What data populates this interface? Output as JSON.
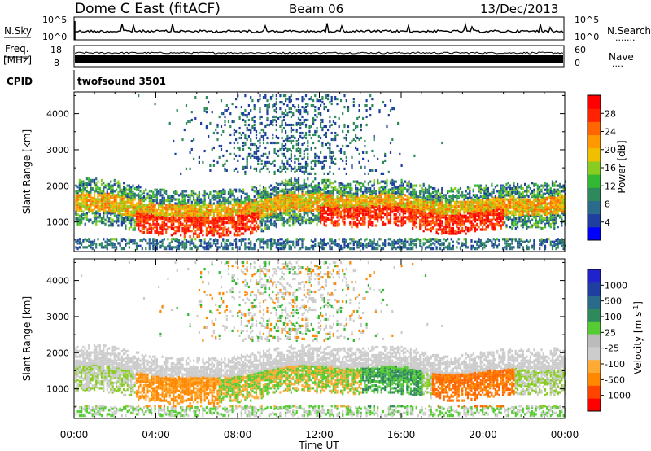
{
  "header": {
    "title": "Dome C East (fitACF)",
    "beam": "Beam 06",
    "date": "13/Dec/2013"
  },
  "strip_nsky": {
    "label": "N.Sky",
    "right_label": "N.Search",
    "right_dots": ".......",
    "ticks_left": [
      "10^5",
      "10^0"
    ],
    "ticks_right": [
      "10^5",
      "10^0"
    ]
  },
  "strip_freq": {
    "label_top": "Freq.",
    "label_bottom": "[MHz]",
    "right_label": "Nave",
    "right_dots": "....",
    "ticks_left": [
      "18",
      "8"
    ],
    "ticks_right": [
      "60",
      "0"
    ]
  },
  "strip_cpid": {
    "label": "CPID",
    "value": "twofsound 3501"
  },
  "colors": {
    "power_scale": [
      "#0000ff",
      "#1f3fa0",
      "#2a6a8a",
      "#2e8a5a",
      "#33b833",
      "#88cc22",
      "#f0c000",
      "#ff9900",
      "#ff6600",
      "#ff2200",
      "#ff0000"
    ],
    "velocity_scale": [
      "#ff0000",
      "#ff4400",
      "#ff8800",
      "#ffaa33",
      "#cccccc",
      "#bbbbbb",
      "#55cc33",
      "#2e8a5a",
      "#2a6a8a",
      "#1f3fa0",
      "#2222cc"
    ]
  },
  "chart_data": [
    {
      "type": "heatmap",
      "panel": "power",
      "ylabel": "Slant Range [km]",
      "yticks": [
        1000,
        2000,
        3000,
        4000
      ],
      "ylim": [
        180,
        4600
      ],
      "xlim": [
        0,
        24
      ],
      "colorbar": {
        "label": "Power [dB]",
        "ticks": [
          4,
          8,
          12,
          16,
          20,
          24,
          28
        ],
        "range": [
          0,
          32
        ]
      }
    },
    {
      "type": "heatmap",
      "panel": "velocity",
      "ylabel": "Slant Range [km]",
      "yticks": [
        1000,
        2000,
        3000,
        4000
      ],
      "ylim": [
        180,
        4600
      ],
      "xlim": [
        0,
        24
      ],
      "xlabel": "Time UT",
      "xticks": [
        "00:00",
        "04:00",
        "08:00",
        "12:00",
        "16:00",
        "20:00",
        "00:00"
      ],
      "colorbar": {
        "label": "Velocity [m s",
        "label_sup": "-1",
        "label_end": "]",
        "ticks": [
          "1000",
          "500",
          "100",
          "25",
          "-25",
          "-100",
          "-500",
          "-1000"
        ]
      }
    }
  ]
}
